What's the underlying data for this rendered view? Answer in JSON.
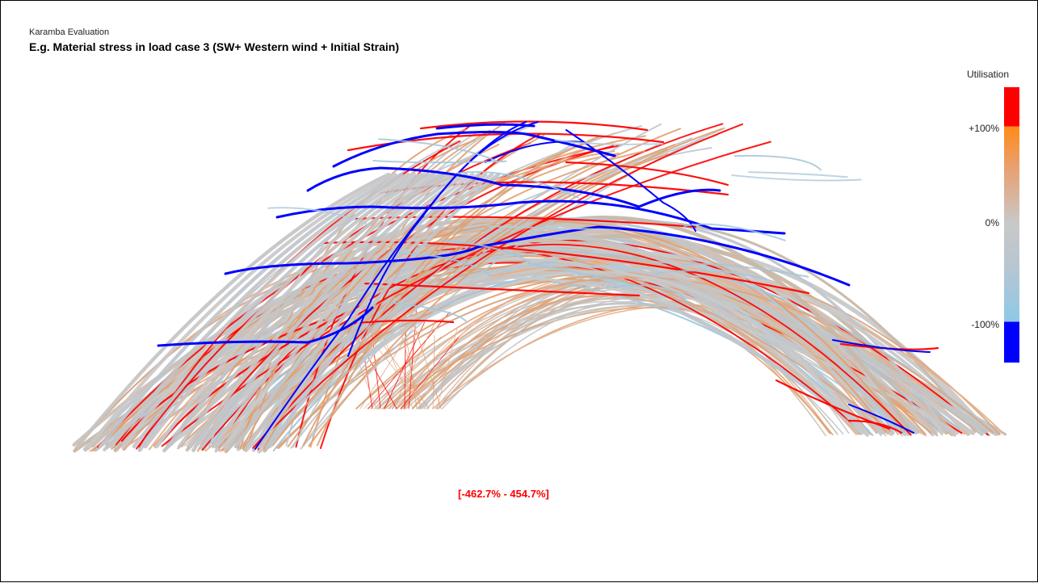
{
  "header": {
    "subtitle": "Karamba Evaluation",
    "title": "E.g. Material stress in load case 3 (SW+ Western wind + Initial Strain)"
  },
  "legend": {
    "title": "Utilisation",
    "ticks": {
      "plus100": "+100%",
      "zero": "0%",
      "minus100": "-100%"
    },
    "colors": {
      "max": "#ff0000",
      "high": "#ff8c1a",
      "neutral": "#c8c8c8",
      "low": "#8ec8e8",
      "min": "#0000ff"
    }
  },
  "range_label": "[-462.7% - 454.7%]"
}
